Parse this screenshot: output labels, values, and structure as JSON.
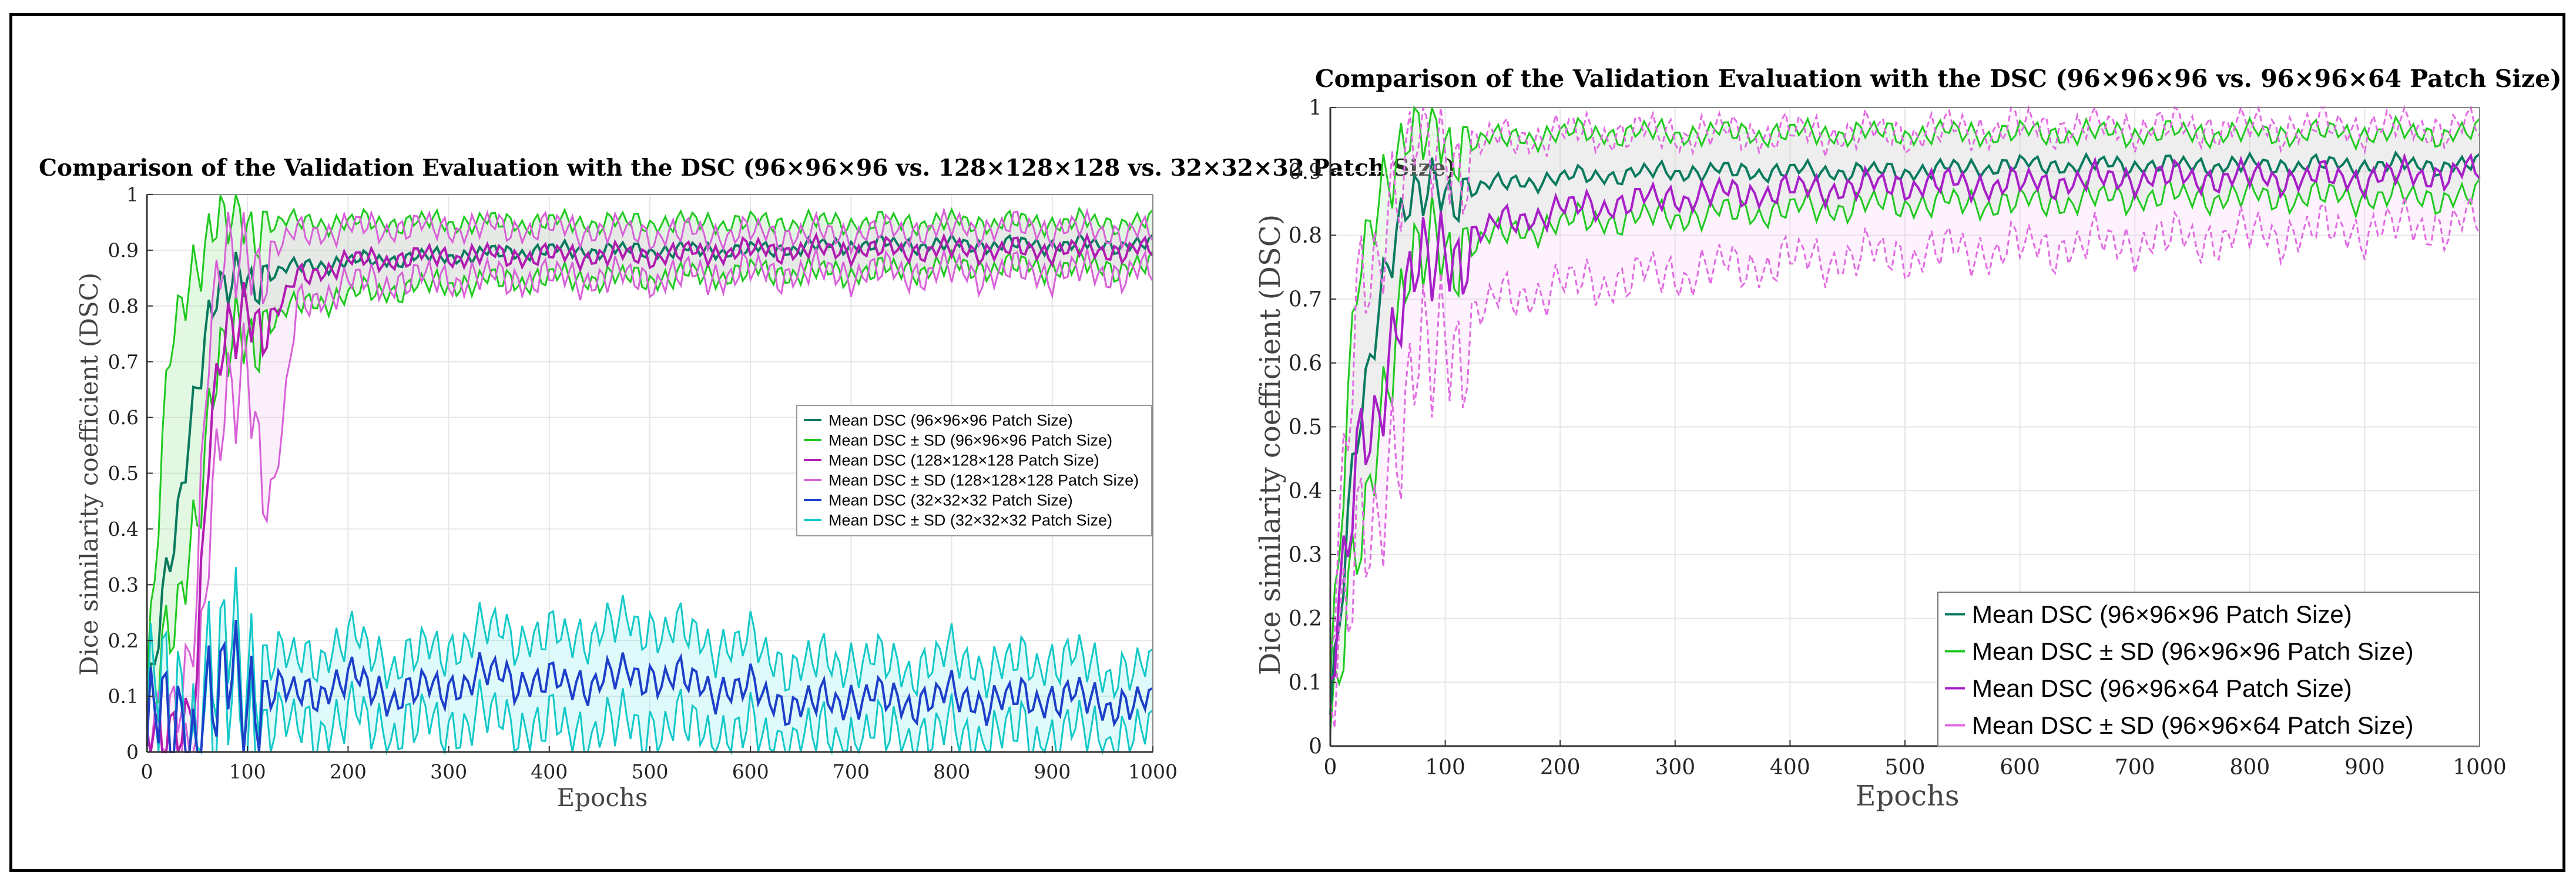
{
  "chart_data": [
    {
      "type": "line",
      "title": "Comparison of the Validation Evaluation with the DSC (96×96×96 vs. 128×128×128 vs. 32×32×32 Patch Size)",
      "xlabel": "Epochs",
      "ylabel": "Dice similarity coefficient (DSC)",
      "xlim": [
        0,
        1000
      ],
      "ylim": [
        0,
        1
      ],
      "xticks": [
        0,
        100,
        200,
        300,
        400,
        500,
        600,
        700,
        800,
        900,
        1000
      ],
      "yticks": [
        0,
        0.1,
        0.2,
        0.3,
        0.4,
        0.5,
        0.6,
        0.7,
        0.8,
        0.9,
        1
      ],
      "ytick_labels": [
        "0",
        "0.1",
        "0.2",
        "0.3",
        "0.4",
        "0.5",
        "0.6",
        "0.7",
        "0.8",
        "0.9",
        "1"
      ],
      "grid": true,
      "legend_position": "right-middle",
      "series": [
        {
          "name": "Mean DSC (96×96×96 Patch Size)",
          "color": "#0a7a5e",
          "dash": "",
          "x": [
            0,
            25,
            50,
            60,
            75,
            100,
            150,
            200,
            300,
            400,
            500,
            600,
            700,
            800,
            900,
            1000
          ],
          "mean": [
            0.08,
            0.35,
            0.68,
            0.78,
            0.82,
            0.85,
            0.87,
            0.88,
            0.89,
            0.9,
            0.9,
            0.9,
            0.91,
            0.91,
            0.91,
            0.91
          ],
          "sd_upper": [
            0.12,
            0.75,
            0.9,
            0.93,
            0.94,
            0.95,
            0.95,
            0.95,
            0.95,
            0.95,
            0.95,
            0.95,
            0.95,
            0.95,
            0.95,
            0.95
          ],
          "sd_lower": [
            0.05,
            0.2,
            0.45,
            0.6,
            0.7,
            0.75,
            0.8,
            0.82,
            0.84,
            0.85,
            0.85,
            0.86,
            0.86,
            0.87,
            0.87,
            0.87
          ]
        },
        {
          "name": "Mean DSC (128×128×128 Patch Size)",
          "color": "#b21cb2",
          "dash": "",
          "x": [
            0,
            25,
            50,
            60,
            75,
            100,
            125,
            150,
            200,
            300,
            400,
            500,
            600,
            700,
            800,
            900,
            1000
          ],
          "mean": [
            0.01,
            0.0,
            0.15,
            0.55,
            0.7,
            0.8,
            0.78,
            0.85,
            0.88,
            0.89,
            0.89,
            0.89,
            0.9,
            0.9,
            0.9,
            0.9,
            0.9
          ],
          "sd_upper": [
            0.02,
            0.02,
            0.3,
            0.75,
            0.85,
            0.9,
            0.9,
            0.93,
            0.94,
            0.94,
            0.94,
            0.93,
            0.93,
            0.93,
            0.94,
            0.94,
            0.93
          ],
          "sd_lower": [
            0.0,
            0.0,
            0.05,
            0.4,
            0.55,
            0.7,
            0.45,
            0.8,
            0.84,
            0.85,
            0.85,
            0.85,
            0.86,
            0.86,
            0.86,
            0.86,
            0.86
          ]
        },
        {
          "name": "Mean DSC (32×32×32 Patch Size)",
          "color": "#1d3fc9",
          "dash": "",
          "x": [
            0,
            50,
            100,
            150,
            200,
            250,
            300,
            350,
            400,
            450,
            500,
            550,
            600,
            650,
            700,
            750,
            800,
            850,
            900,
            950,
            1000
          ],
          "mean": [
            0.02,
            0.06,
            0.12,
            0.1,
            0.13,
            0.1,
            0.12,
            0.14,
            0.12,
            0.13,
            0.14,
            0.12,
            0.11,
            0.08,
            0.1,
            0.09,
            0.1,
            0.09,
            0.1,
            0.09,
            0.08
          ],
          "sd_upper": [
            0.06,
            0.1,
            0.18,
            0.16,
            0.2,
            0.16,
            0.19,
            0.22,
            0.2,
            0.22,
            0.23,
            0.2,
            0.19,
            0.15,
            0.17,
            0.15,
            0.17,
            0.15,
            0.17,
            0.15,
            0.14
          ],
          "sd_lower": [
            0.0,
            0.02,
            0.06,
            0.04,
            0.06,
            0.04,
            0.05,
            0.06,
            0.04,
            0.04,
            0.05,
            0.04,
            0.03,
            0.02,
            0.03,
            0.03,
            0.03,
            0.03,
            0.03,
            0.03,
            0.02
          ]
        }
      ],
      "legend": [
        {
          "label": "Mean DSC (96×96×96 Patch Size)",
          "color": "#0a7a5e"
        },
        {
          "label": "Mean DSC ± SD (96×96×96 Patch Size)",
          "color": "#1fc91f"
        },
        {
          "label": "Mean DSC (128×128×128 Patch Size)",
          "color": "#b21cb2"
        },
        {
          "label": "Mean DSC ± SD (128×128×128 Patch Size)",
          "color": "#d860d8"
        },
        {
          "label": "Mean DSC (32×32×32 Patch Size)",
          "color": "#1d3fc9"
        },
        {
          "label": "Mean DSC ± SD (32×32×32 Patch Size)",
          "color": "#14c8c8"
        }
      ]
    },
    {
      "type": "line",
      "title": "Comparison of the Validation Evaluation with the DSC (96×96×96 vs. 96×96×64 Patch Size)",
      "xlabel": "Epochs",
      "ylabel": "Dice similarity coefficient (DSC)",
      "xlim": [
        0,
        1000
      ],
      "ylim": [
        0,
        1
      ],
      "xticks": [
        0,
        100,
        200,
        300,
        400,
        500,
        600,
        700,
        800,
        900,
        1000
      ],
      "yticks": [
        0,
        0.1,
        0.2,
        0.3,
        0.4,
        0.5,
        0.6,
        0.7,
        0.8,
        0.9,
        1
      ],
      "ytick_labels": [
        "0",
        "0.1",
        "0.2",
        "0.3",
        "0.4",
        "0.5",
        "0.6",
        "0.7",
        "0.8",
        "0.9",
        "1"
      ],
      "grid": true,
      "legend_position": "bottom-right",
      "series": [
        {
          "name": "Mean DSC (96×96×96 Patch Size)",
          "color": "#0a7a5e",
          "dash": "",
          "x": [
            0,
            25,
            50,
            60,
            75,
            100,
            150,
            200,
            300,
            400,
            500,
            600,
            700,
            800,
            900,
            1000
          ],
          "mean": [
            0.05,
            0.5,
            0.78,
            0.83,
            0.85,
            0.87,
            0.88,
            0.89,
            0.9,
            0.9,
            0.9,
            0.91,
            0.91,
            0.91,
            0.91,
            0.91
          ],
          "sd_upper": [
            0.1,
            0.75,
            0.92,
            0.94,
            0.95,
            0.95,
            0.95,
            0.96,
            0.96,
            0.96,
            0.96,
            0.96,
            0.96,
            0.96,
            0.96,
            0.96
          ],
          "sd_lower": [
            0.02,
            0.3,
            0.6,
            0.7,
            0.75,
            0.78,
            0.8,
            0.82,
            0.83,
            0.84,
            0.85,
            0.85,
            0.86,
            0.86,
            0.86,
            0.86
          ]
        },
        {
          "name": "Mean DSC (96×96×64 Patch Size)",
          "color": "#a81fc8",
          "dash": "",
          "x": [
            0,
            25,
            50,
            60,
            75,
            100,
            150,
            200,
            300,
            400,
            500,
            600,
            700,
            800,
            900,
            1000
          ],
          "mean": [
            0.08,
            0.45,
            0.6,
            0.7,
            0.72,
            0.78,
            0.82,
            0.84,
            0.86,
            0.87,
            0.88,
            0.88,
            0.89,
            0.89,
            0.89,
            0.9
          ],
          "sd_upper": [
            0.12,
            0.7,
            0.85,
            0.9,
            0.92,
            0.94,
            0.95,
            0.96,
            0.96,
            0.96,
            0.96,
            0.97,
            0.97,
            0.97,
            0.97,
            0.97
          ],
          "sd_lower": [
            0.03,
            0.3,
            0.45,
            0.5,
            0.55,
            0.65,
            0.7,
            0.72,
            0.74,
            0.76,
            0.77,
            0.78,
            0.79,
            0.8,
            0.81,
            0.82
          ]
        }
      ],
      "legend": [
        {
          "label": "Mean DSC (96×96×96 Patch Size)",
          "color": "#0a7a5e"
        },
        {
          "label": "Mean DSC ± SD (96×96×96 Patch Size)",
          "color": "#1fc91f"
        },
        {
          "label": "Mean DSC (96×96×64 Patch Size)",
          "color": "#a81fc8"
        },
        {
          "label": "Mean DSC ± SD (96×96×64 Patch Size)",
          "color": "#e26be2"
        }
      ]
    }
  ]
}
